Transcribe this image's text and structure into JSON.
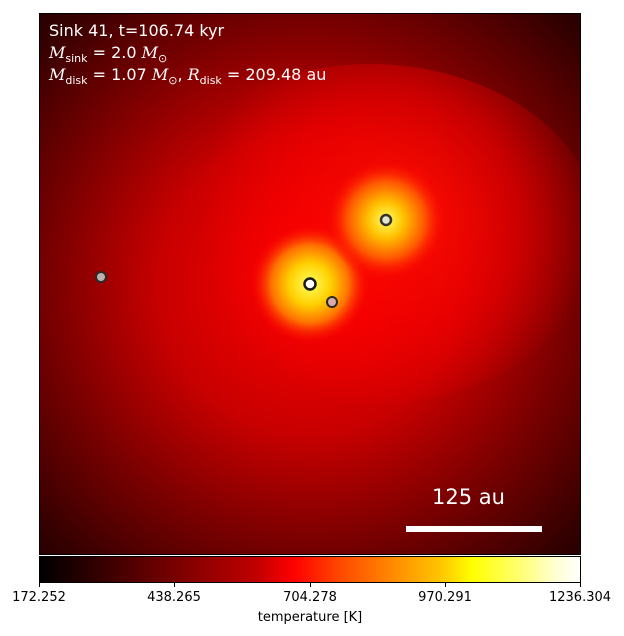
{
  "title_line": "Sink 41, t=106.74 kyr",
  "msink": {
    "sym": "M",
    "sub": "sink",
    "value": "2.0",
    "unit": "M",
    "unit_sub": "⊙"
  },
  "mdisk": {
    "sym": "M",
    "sub": "disk",
    "value": "1.07",
    "unit": "M",
    "unit_sub": "⊙"
  },
  "rdisk": {
    "sym": "R",
    "sub": "disk",
    "value": "209.48",
    "unit": "au"
  },
  "scalebar_label": "125 au",
  "colorbar": {
    "label": "temperature [K]",
    "ticks": [
      "172.252",
      "438.265",
      "704.278",
      "970.291",
      "1236.304"
    ]
  },
  "sinks": [
    {
      "name": "central-sink",
      "fill": "#ffffff"
    },
    {
      "name": "sink-upper-right",
      "fill": "#e6e6cc"
    },
    {
      "name": "sink-left",
      "fill": "#bdb0b0"
    },
    {
      "name": "sink-lower-right",
      "fill": "#ddaaaa"
    }
  ]
}
